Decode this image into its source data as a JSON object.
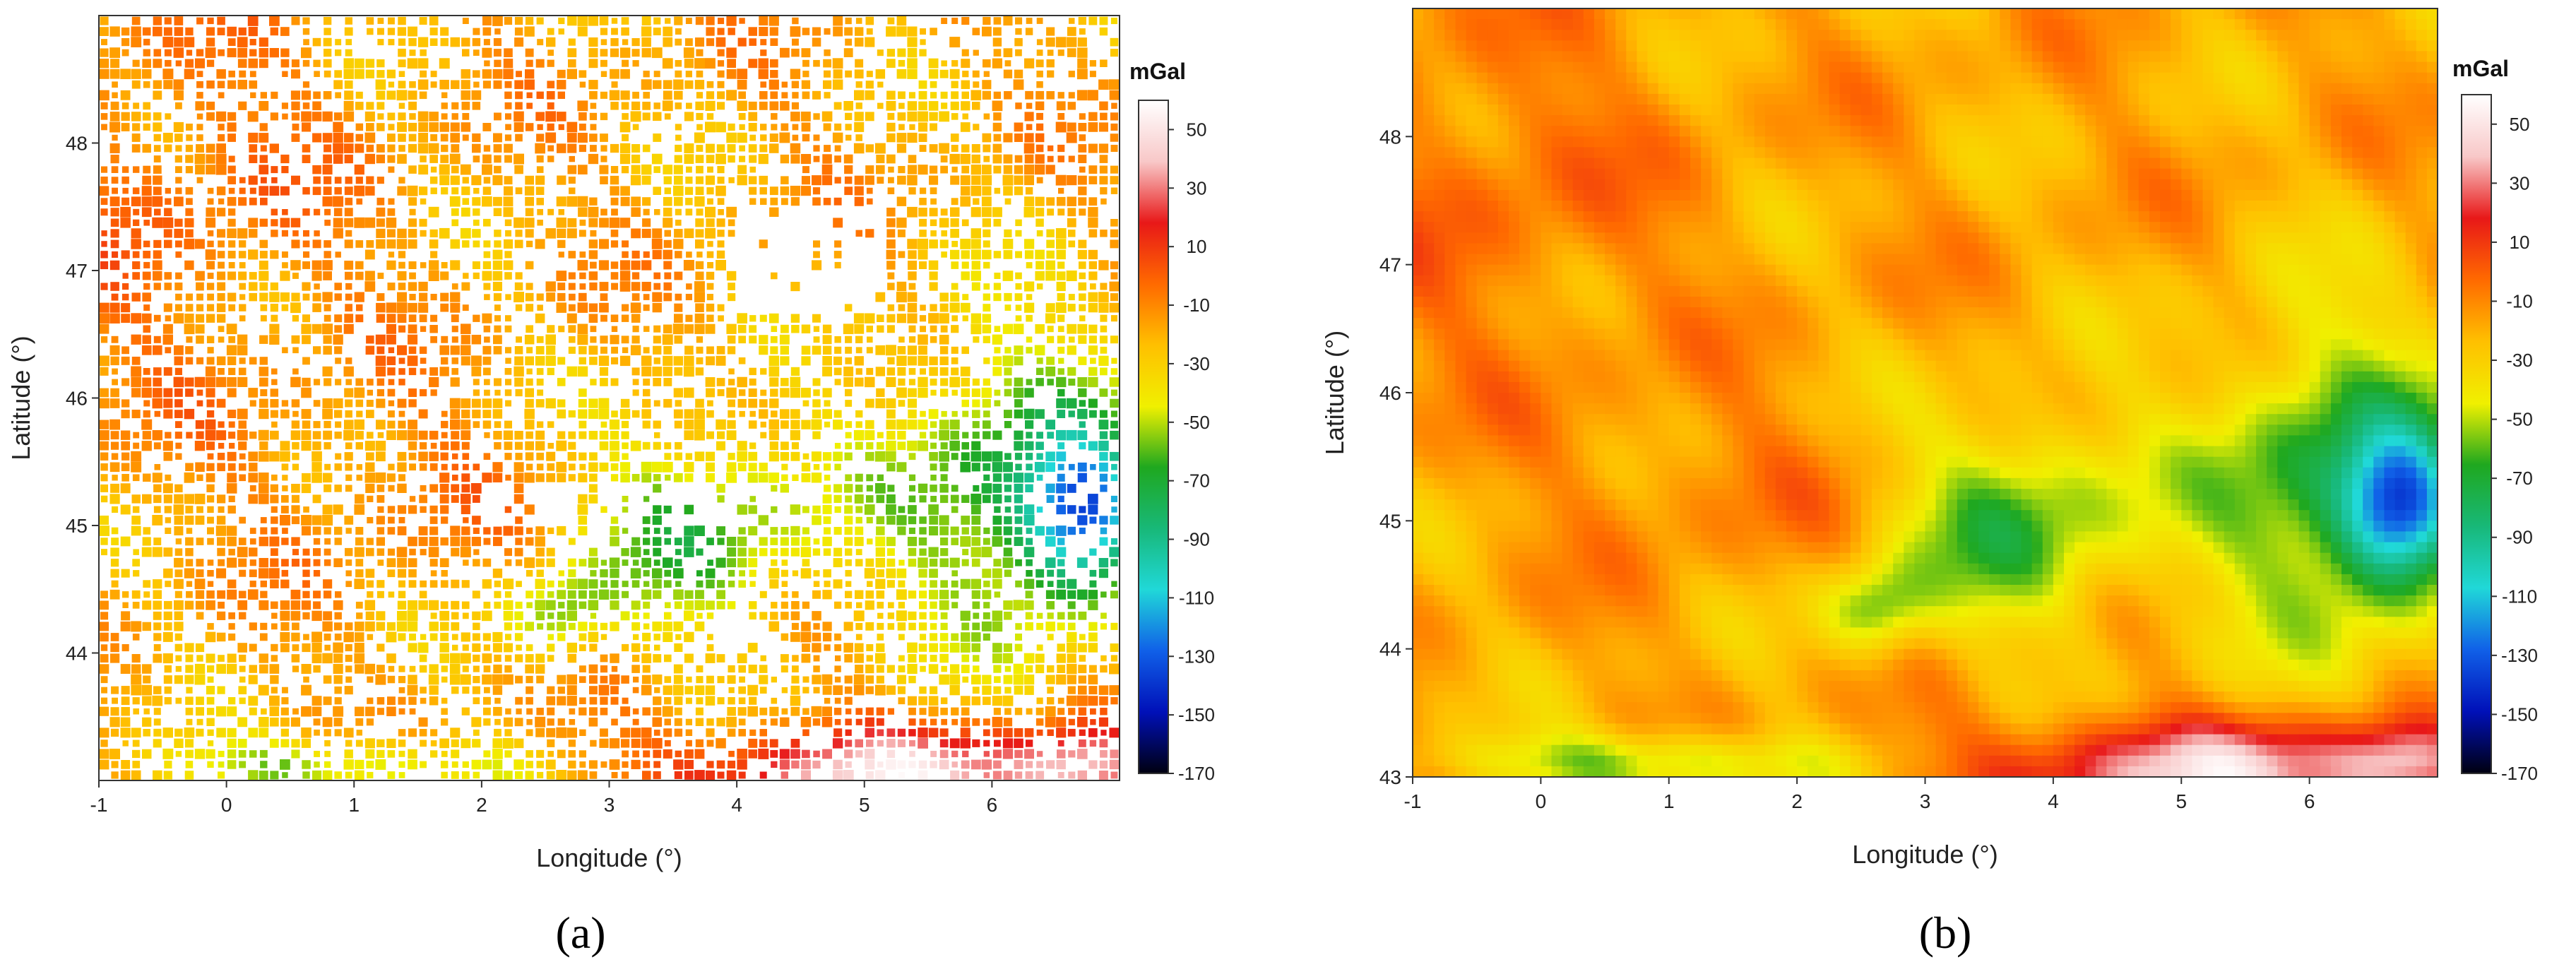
{
  "panels": [
    {
      "id": "a",
      "label": "(a)",
      "xlabel": "Longitude (°)",
      "ylabel": "Latitude (°)",
      "xlim": [
        -1,
        7
      ],
      "ylim": [
        43,
        49
      ],
      "xticks": [
        "-1",
        "0",
        "1",
        "2",
        "3",
        "4",
        "5",
        "6"
      ],
      "yticks": [
        "44",
        "45",
        "46",
        "47",
        "48"
      ],
      "style": "scattered-points"
    },
    {
      "id": "b",
      "label": "(b)",
      "xlabel": "Longitude (°)",
      "ylabel": "Latitude (°)",
      "xlim": [
        -1,
        7
      ],
      "ylim": [
        43,
        49
      ],
      "xticks": [
        "-1",
        "0",
        "1",
        "2",
        "3",
        "4",
        "5",
        "6"
      ],
      "yticks": [
        "43",
        "44",
        "45",
        "46",
        "47",
        "48"
      ],
      "style": "continuous-grid"
    }
  ],
  "colorbar": {
    "unit": "mGal",
    "ticks": [
      "50",
      "30",
      "10",
      "-10",
      "-30",
      "-50",
      "-70",
      "-90",
      "-110",
      "-130",
      "-150",
      "-170"
    ],
    "range": [
      -170,
      60
    ],
    "stops": [
      "#ffffff",
      "#f8c8c8",
      "#e81818",
      "#ff6a00",
      "#ffc000",
      "#f0f000",
      "#1fa81f",
      "#18b878",
      "#20d8d8",
      "#1060e8",
      "#0010b8",
      "#000010"
    ]
  }
}
